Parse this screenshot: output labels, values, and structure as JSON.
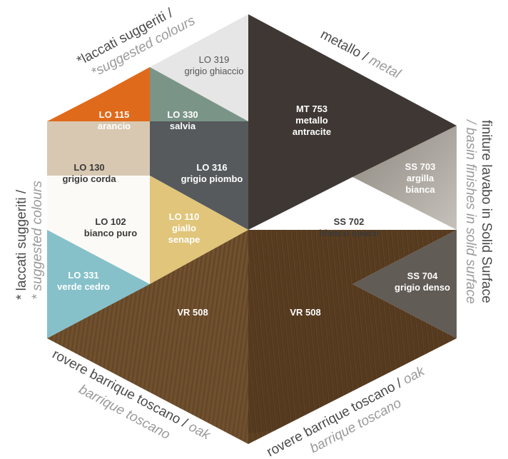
{
  "edges": {
    "top_left": {
      "it": "laccati suggeriti /",
      "en": "*suggested colours",
      "prefix": "*"
    },
    "top_right": {
      "it": "metallo / ",
      "en": "metal"
    },
    "left": {
      "it": "* laccati suggeriti /",
      "en": "* suggested colours"
    },
    "right": {
      "it": "finiture lavabo in Solid Surface",
      "en": "/ basin finishes in solid surface"
    },
    "bottom_left": {
      "it": "rovere barrique toscano / ",
      "en_inline": "oak",
      "en": "barrique toscano"
    },
    "bottom_right": {
      "it": "rovere barrique toscano / ",
      "en_inline": "oak",
      "en": "barrique toscano"
    }
  },
  "swatches": {
    "lo319": {
      "code": "LO 319",
      "name": "grigio ghiaccio",
      "color": "#e6e6e6"
    },
    "lo115": {
      "code": "LO 115",
      "name": "arancio",
      "color": "#e06a1b"
    },
    "lo330": {
      "code": "LO 330",
      "name": "salvia",
      "color": "#7b9488"
    },
    "mt753": {
      "code": "MT 753",
      "name_1": "metallo",
      "name_2": "antracite",
      "color": "#3e3734"
    },
    "lo130": {
      "code": "LO 130",
      "name": "grigio corda",
      "color": "#d8c8b2"
    },
    "lo316": {
      "code": "LO 316",
      "name": "grigio piombo",
      "color": "#565a5c"
    },
    "ss703": {
      "code": "SS 703",
      "name_1": "argilla",
      "name_2": "bianca",
      "color": "#a7a29b"
    },
    "lo102": {
      "code": "LO 102",
      "name": "bianco puro",
      "color": "#fbfaf7"
    },
    "lo110": {
      "code": "LO 110",
      "name_1": "giallo",
      "name_2": "senape",
      "color": "#e0c57a"
    },
    "ss702": {
      "code": "SS 702",
      "name": "bianco opaco",
      "color": "#ffffff"
    },
    "lo331": {
      "code": "LO 331",
      "name": "verde cedro",
      "color": "#86c1ca"
    },
    "ss704": {
      "code": "SS 704",
      "name": "grigio denso",
      "color": "#625c56"
    },
    "vr508_left": {
      "code": "VR 508",
      "color": "#6e4e2c"
    },
    "vr508_right": {
      "code": "VR 508",
      "color": "#5f4222"
    }
  }
}
